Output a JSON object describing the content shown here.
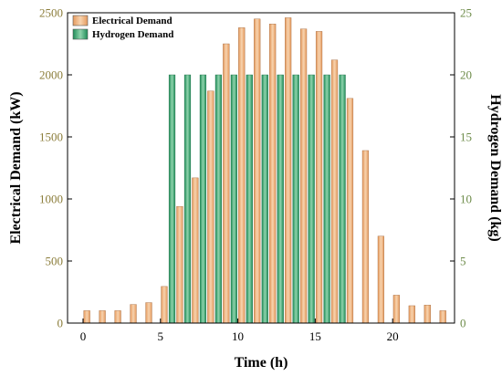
{
  "chart_data": {
    "type": "bar",
    "xlabel": "Time (h)",
    "x": [
      0,
      1,
      2,
      3,
      4,
      5,
      6,
      7,
      8,
      9,
      10,
      11,
      12,
      13,
      14,
      15,
      16,
      17,
      18,
      19,
      20,
      21,
      22,
      23
    ],
    "xticks": [
      0,
      5,
      10,
      15,
      20
    ],
    "xlim": [
      -1,
      24
    ],
    "y_left": {
      "label": "Electrical Demand (kW)",
      "lim": [
        0,
        2500
      ],
      "ticks": [
        0,
        500,
        1000,
        1500,
        2000,
        2500
      ],
      "color": "#8b7d3a"
    },
    "y_right": {
      "label": "Hydrogen Demand (kg)",
      "lim": [
        0,
        25
      ],
      "ticks": [
        0,
        5,
        10,
        15,
        20,
        25
      ],
      "color": "#6e8c4a"
    },
    "series": [
      {
        "name": "Electrical Demand",
        "axis": "left",
        "color": "#f2b98c",
        "values": [
          100,
          100,
          100,
          150,
          165,
          295,
          940,
          1170,
          1870,
          2250,
          2380,
          2450,
          2410,
          2460,
          2370,
          2350,
          2120,
          1810,
          1390,
          700,
          225,
          140,
          145,
          100
        ]
      },
      {
        "name": "Hydrogen Demand",
        "axis": "right",
        "color": "#2f9c6a",
        "values": [
          0,
          0,
          0,
          0,
          0,
          0,
          20,
          20,
          20,
          20,
          20,
          20,
          20,
          20,
          20,
          20,
          20,
          20,
          0,
          0,
          0,
          0,
          0,
          0
        ]
      }
    ],
    "legend": {
      "position": "top-left"
    },
    "grid": false
  }
}
